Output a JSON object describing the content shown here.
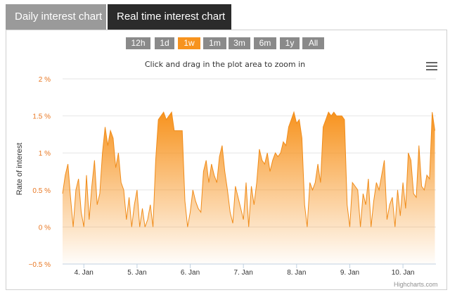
{
  "tabs": [
    {
      "label": "Daily interest chart",
      "active": false
    },
    {
      "label": "Real time interest chart",
      "active": true
    }
  ],
  "range_selector": {
    "buttons": [
      "12h",
      "1d",
      "1w",
      "1m",
      "3m",
      "6m",
      "1y",
      "All"
    ],
    "selected": "1w"
  },
  "hint": "Click and drag in the plot area to zoom in",
  "menu_icon": "hamburger-menu-icon",
  "credits": "Highcharts.com",
  "colors": {
    "accent": "#f7931e",
    "line": "#f08c1a",
    "axis_label": "#e87722",
    "tab_inactive": "#9a9a9a",
    "tab_active": "#2b2b2b"
  },
  "chart_data": {
    "type": "area",
    "title": "",
    "xlabel": "",
    "ylabel": "Rate of interest",
    "yticks": [
      "2 %",
      "1.5 %",
      "1 %",
      "0.5 %",
      "0 %",
      "−0.5 %"
    ],
    "ylim": [
      -0.5,
      2
    ],
    "xticks": [
      "4. Jan",
      "5. Jan",
      "6. Jan",
      "7. Jan",
      "8. Jan",
      "9. Jan",
      "10. Jan"
    ],
    "xlim": [
      3.6,
      10.62
    ],
    "grid": true,
    "series": [
      {
        "x": [
          3.6,
          3.65,
          3.7,
          3.75,
          3.8,
          3.85,
          3.9,
          3.95,
          4.0,
          4.05,
          4.1,
          4.15,
          4.2,
          4.25,
          4.3,
          4.35,
          4.4,
          4.45,
          4.5,
          4.55,
          4.6,
          4.65,
          4.7,
          4.75,
          4.8,
          4.85,
          4.9,
          4.95,
          5.0,
          5.05,
          5.1,
          5.15,
          5.2,
          5.25,
          5.3,
          5.35,
          5.4,
          5.45,
          5.5,
          5.55,
          5.6,
          5.65,
          5.7,
          5.75,
          5.8,
          5.85,
          5.9,
          5.95,
          6.0,
          6.05,
          6.1,
          6.15,
          6.2,
          6.25,
          6.3,
          6.35,
          6.4,
          6.45,
          6.5,
          6.55,
          6.6,
          6.65,
          6.7,
          6.75,
          6.8,
          6.85,
          6.9,
          6.95,
          7.0,
          7.05,
          7.1,
          7.15,
          7.2,
          7.25,
          7.3,
          7.35,
          7.4,
          7.45,
          7.5,
          7.55,
          7.6,
          7.65,
          7.7,
          7.75,
          7.8,
          7.85,
          7.9,
          7.95,
          8.0,
          8.05,
          8.1,
          8.15,
          8.2,
          8.25,
          8.3,
          8.35,
          8.4,
          8.45,
          8.5,
          8.55,
          8.6,
          8.65,
          8.7,
          8.75,
          8.8,
          8.85,
          8.9,
          8.95,
          9.0,
          9.05,
          9.1,
          9.15,
          9.2,
          9.25,
          9.3,
          9.35,
          9.4,
          9.45,
          9.5,
          9.55,
          9.6,
          9.65,
          9.7,
          9.75,
          9.8,
          9.85,
          9.9,
          9.95,
          10.0,
          10.05,
          10.1,
          10.15,
          10.2,
          10.25,
          10.3,
          10.35,
          10.4,
          10.45,
          10.5,
          10.55,
          10.6
        ],
        "y": [
          0.45,
          0.7,
          0.85,
          0.4,
          0.0,
          0.5,
          0.65,
          0.2,
          0.0,
          0.7,
          0.1,
          0.55,
          0.9,
          0.3,
          0.45,
          1.0,
          1.35,
          1.1,
          1.3,
          1.2,
          0.8,
          1.0,
          0.6,
          0.5,
          0.1,
          0.4,
          0.0,
          0.3,
          0.5,
          0.0,
          0.25,
          0.0,
          0.1,
          0.3,
          0.0,
          0.9,
          1.45,
          1.5,
          1.55,
          1.45,
          1.5,
          1.55,
          1.3,
          1.3,
          1.3,
          1.3,
          0.35,
          0.0,
          0.2,
          0.5,
          0.35,
          0.25,
          0.2,
          0.75,
          0.9,
          0.6,
          0.85,
          0.7,
          0.6,
          0.95,
          1.1,
          0.75,
          0.5,
          0.2,
          0.05,
          0.55,
          0.4,
          0.25,
          0.1,
          0.6,
          0.0,
          0.55,
          0.3,
          0.6,
          1.05,
          0.9,
          0.85,
          1.0,
          0.75,
          0.9,
          1.0,
          0.95,
          1.0,
          1.15,
          1.1,
          1.35,
          1.45,
          1.55,
          1.4,
          1.45,
          1.2,
          0.3,
          0.0,
          0.6,
          0.5,
          0.6,
          0.85,
          0.6,
          1.35,
          1.45,
          1.55,
          1.5,
          1.55,
          1.5,
          1.5,
          1.5,
          1.45,
          0.3,
          0.0,
          0.6,
          0.55,
          0.5,
          0.0,
          0.45,
          0.3,
          0.65,
          0.0,
          0.35,
          0.6,
          0.5,
          0.7,
          0.9,
          0.1,
          0.3,
          0.4,
          0.0,
          0.5,
          0.15,
          0.6,
          0.25,
          1.0,
          0.9,
          0.45,
          0.4,
          1.1,
          0.55,
          0.5,
          0.7,
          0.65,
          1.55,
          1.3
        ]
      }
    ]
  }
}
